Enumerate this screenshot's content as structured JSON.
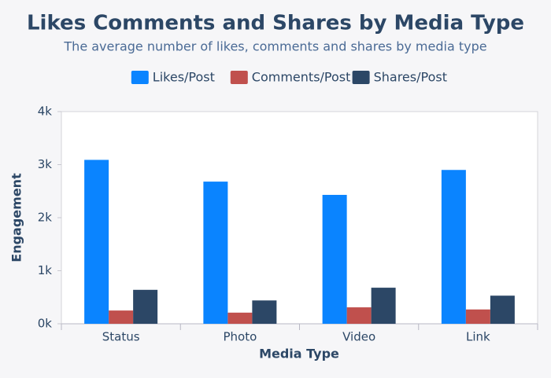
{
  "chart_data": {
    "type": "bar",
    "title": "Likes Comments and Shares by Media Type",
    "subtitle": "The average number of likes, comments and shares by media type",
    "x_label": "Media Type",
    "y_label": "Engagement",
    "categories": [
      "Status",
      "Photo",
      "Video",
      "Link"
    ],
    "series": [
      {
        "name": "Likes/Post",
        "color": "#0a84ff",
        "values": [
          3090,
          2680,
          2430,
          2900
        ]
      },
      {
        "name": "Comments/Post",
        "color": "#c0504d",
        "values": [
          250,
          210,
          310,
          270
        ]
      },
      {
        "name": "Shares/Post",
        "color": "#2c4766",
        "values": [
          640,
          440,
          680,
          530
        ]
      }
    ],
    "ylim": [
      0,
      4000
    ],
    "yticks": [
      {
        "value": 0,
        "label": "0k"
      },
      {
        "value": 1000,
        "label": "1k"
      },
      {
        "value": 2000,
        "label": "2k"
      },
      {
        "value": 3000,
        "label": "3k"
      },
      {
        "value": 4000,
        "label": "4k"
      }
    ],
    "grid": false,
    "legend": "top"
  }
}
